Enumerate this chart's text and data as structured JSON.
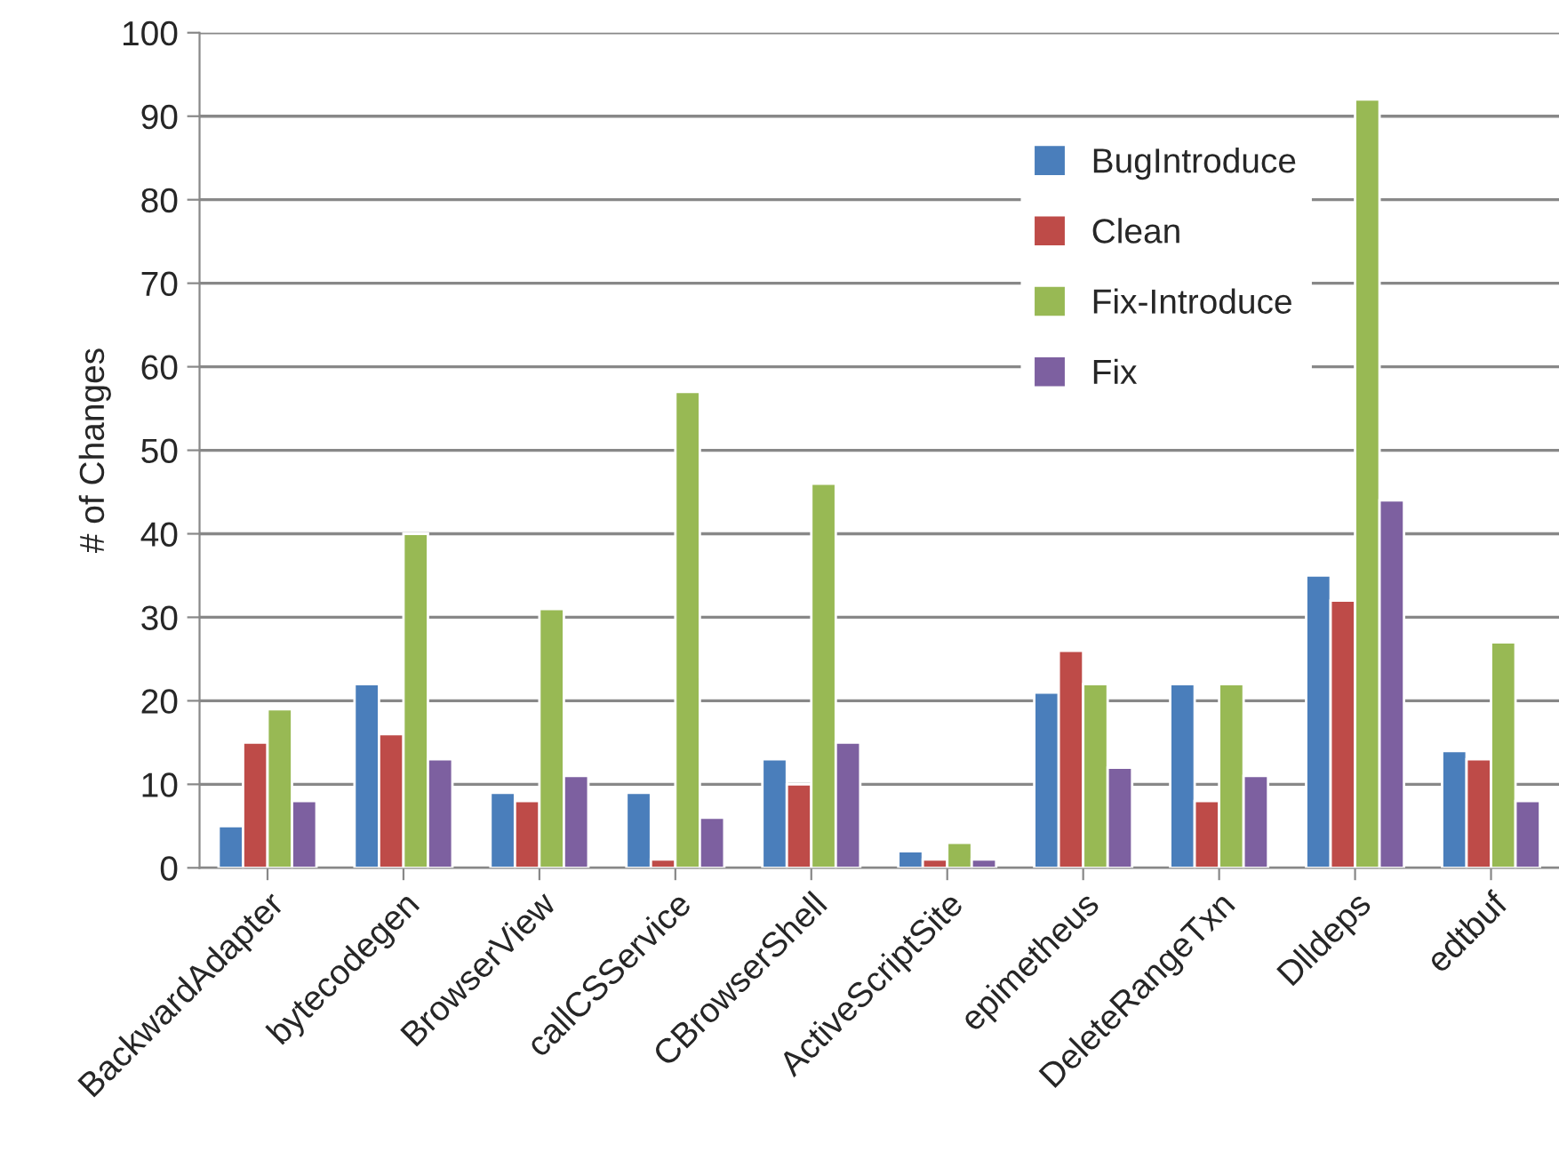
{
  "chart_data": {
    "type": "bar",
    "ylabel": "# of Changes",
    "categories": [
      "BackwardAdapter",
      "bytecodegen",
      "BrowserView",
      "callCSService",
      "CBrowserShell",
      "ActiveScriptSite",
      "epimetheus",
      "DeleteRangeTxn",
      "Dlldeps",
      "edtbuf"
    ],
    "series": [
      {
        "name": "BugIntroduce",
        "color": "#4a7ebb",
        "values": [
          5,
          22,
          9,
          9,
          13,
          2,
          21,
          22,
          35,
          14
        ]
      },
      {
        "name": "Clean",
        "color": "#be4b48",
        "values": [
          15,
          16,
          8,
          1,
          10,
          1,
          26,
          8,
          32,
          13
        ]
      },
      {
        "name": "Fix-Introduce",
        "color": "#98b954",
        "values": [
          19,
          40,
          31,
          57,
          46,
          3,
          22,
          22,
          92,
          27
        ]
      },
      {
        "name": "Fix",
        "color": "#7d60a0",
        "values": [
          8,
          13,
          11,
          6,
          15,
          1,
          12,
          11,
          44,
          8
        ]
      }
    ],
    "ylim": [
      0,
      100
    ],
    "yticks": [
      0,
      10,
      20,
      30,
      40,
      50,
      60,
      70,
      80,
      90,
      100
    ],
    "grid": "y",
    "legend": "top right"
  }
}
